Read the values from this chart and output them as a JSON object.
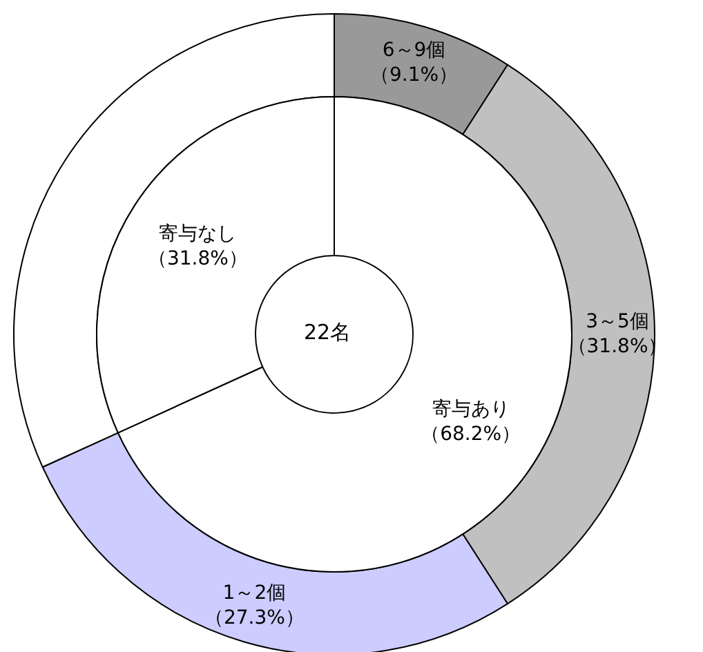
{
  "chart_data": [
    {
      "type": "donut",
      "categories": [
        "6～9個",
        "3～5個",
        "1～2個",
        null
      ],
      "values": [
        9.1,
        31.8,
        27.3,
        31.8
      ],
      "colors": [
        "#999999",
        "#c0c0c0",
        "#ccccff",
        "#ffffff"
      ],
      "value_labels": [
        "（9.1%）",
        "（31.8%）",
        "（27.3%）",
        null
      ]
    },
    {
      "type": "donut",
      "categories": [
        "寄与あり",
        "寄与なし"
      ],
      "values": [
        68.2,
        31.8
      ],
      "colors": [
        "#ffffff",
        "#ffffff"
      ],
      "value_labels": [
        "（68.2%）",
        "（31.8%）"
      ],
      "annotations": [
        "22名"
      ]
    }
  ]
}
